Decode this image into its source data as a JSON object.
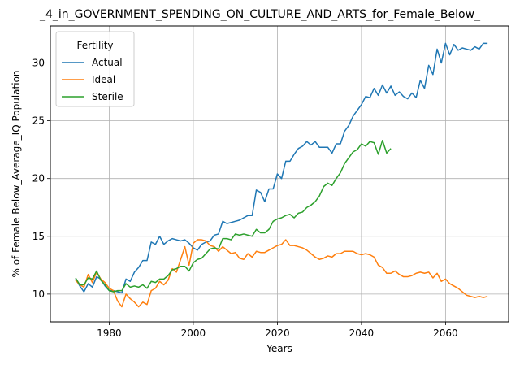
{
  "chart_data": {
    "type": "line",
    "title": "_4_in_GOVERNMENT_SPENDING_ON_CULTURE_AND_ARTS_for_Female_Below_",
    "xlabel": "Years",
    "ylabel": "% of Female Below_Average_IQ Population",
    "xlim": [
      1966,
      2075
    ],
    "ylim": [
      7.6,
      33.2
    ],
    "xticks": [
      1980,
      2000,
      2020,
      2040,
      2060
    ],
    "yticks": [
      10,
      15,
      20,
      25,
      30
    ],
    "grid": true,
    "legend": {
      "title": "Fertility",
      "placement": "top-left"
    },
    "colors": {
      "Actual": "#1f77b4",
      "Ideal": "#ff7f0e",
      "Sterile": "#2ca02c"
    },
    "series": [
      {
        "name": "Actual",
        "x": [
          1972,
          1973,
          1974,
          1975,
          1976,
          1977,
          1978,
          1979,
          1980,
          1981,
          1982,
          1983,
          1984,
          1985,
          1986,
          1987,
          1988,
          1989,
          1990,
          1991,
          1992,
          1993,
          1994,
          1995,
          1996,
          1997,
          1998,
          1999,
          2000,
          2001,
          2002,
          2003,
          2004,
          2005,
          2006,
          2007,
          2008,
          2009,
          2010,
          2011,
          2012,
          2013,
          2014,
          2015,
          2016,
          2017,
          2018,
          2019,
          2020,
          2021,
          2022,
          2023,
          2024,
          2025,
          2026,
          2027,
          2028,
          2029,
          2030,
          2031,
          2032,
          2033,
          2034,
          2035,
          2036,
          2037,
          2038,
          2039,
          2040,
          2041,
          2042,
          2043,
          2044,
          2045,
          2046,
          2047,
          2048,
          2049,
          2050,
          2051,
          2052,
          2053,
          2054,
          2055,
          2056,
          2057,
          2058,
          2059,
          2060,
          2061,
          2062,
          2063,
          2064,
          2065,
          2066,
          2067,
          2068,
          2069,
          2070
        ],
        "values": [
          11.3,
          10.7,
          10.2,
          10.9,
          10.6,
          11.5,
          11.3,
          10.7,
          10.3,
          10.3,
          10.2,
          10.1,
          11.3,
          11.1,
          11.9,
          12.3,
          12.9,
          12.9,
          14.5,
          14.3,
          15.0,
          14.3,
          14.6,
          14.8,
          14.7,
          14.6,
          14.7,
          14.4,
          14.0,
          13.8,
          14.3,
          14.5,
          14.6,
          15.1,
          15.2,
          16.3,
          16.1,
          16.2,
          16.3,
          16.4,
          16.6,
          16.8,
          16.8,
          19.0,
          18.8,
          18.0,
          19.1,
          19.1,
          20.4,
          20.0,
          21.5,
          21.5,
          22.1,
          22.6,
          22.8,
          23.2,
          22.9,
          23.2,
          22.7,
          22.7,
          22.7,
          22.2,
          23.0,
          23.0,
          24.1,
          24.6,
          25.4,
          25.9,
          26.4,
          27.1,
          27.0,
          27.8,
          27.2,
          28.1,
          27.4,
          28.0,
          27.2,
          27.5,
          27.1,
          26.9,
          27.4,
          27.0,
          28.5,
          27.8,
          29.8,
          29.0,
          31.2,
          30.0,
          31.7,
          30.7,
          31.6,
          31.1,
          31.3,
          31.2,
          31.1,
          31.4,
          31.2,
          31.7,
          31.7
        ]
      },
      {
        "name": "Ideal",
        "x": [
          1972,
          1973,
          1974,
          1975,
          1976,
          1977,
          1978,
          1979,
          1980,
          1981,
          1982,
          1983,
          1984,
          1985,
          1986,
          1987,
          1988,
          1989,
          1990,
          1991,
          1992,
          1993,
          1994,
          1995,
          1996,
          1997,
          1998,
          1999,
          2000,
          2001,
          2002,
          2003,
          2004,
          2005,
          2006,
          2007,
          2008,
          2009,
          2010,
          2011,
          2012,
          2013,
          2014,
          2015,
          2016,
          2017,
          2018,
          2019,
          2020,
          2021,
          2022,
          2023,
          2024,
          2025,
          2026,
          2027,
          2028,
          2029,
          2030,
          2031,
          2032,
          2033,
          2034,
          2035,
          2036,
          2037,
          2038,
          2039,
          2040,
          2041,
          2042,
          2043,
          2044,
          2045,
          2046,
          2047,
          2048,
          2049,
          2050,
          2051,
          2052,
          2053,
          2054,
          2055,
          2056,
          2057,
          2058,
          2059,
          2060,
          2061,
          2062,
          2063,
          2064,
          2065,
          2066,
          2067,
          2068,
          2069,
          2070
        ],
        "values": [
          11.2,
          10.8,
          10.6,
          11.7,
          11.0,
          11.9,
          11.3,
          11.0,
          10.5,
          10.3,
          9.4,
          8.9,
          10.0,
          9.6,
          9.3,
          8.9,
          9.3,
          9.1,
          10.3,
          10.5,
          11.1,
          10.8,
          11.2,
          12.2,
          11.9,
          13.0,
          14.1,
          12.5,
          14.4,
          14.7,
          14.7,
          14.6,
          14.2,
          14.1,
          13.7,
          14.1,
          13.8,
          13.5,
          13.6,
          13.1,
          13.0,
          13.5,
          13.2,
          13.7,
          13.6,
          13.6,
          13.8,
          14.0,
          14.2,
          14.3,
          14.7,
          14.2,
          14.2,
          14.1,
          14.0,
          13.8,
          13.5,
          13.2,
          13.0,
          13.1,
          13.3,
          13.2,
          13.5,
          13.5,
          13.7,
          13.7,
          13.7,
          13.5,
          13.4,
          13.5,
          13.4,
          13.2,
          12.5,
          12.3,
          11.8,
          11.8,
          12.0,
          11.7,
          11.5,
          11.5,
          11.6,
          11.8,
          11.9,
          11.8,
          11.9,
          11.4,
          11.8,
          11.1,
          11.3,
          10.9,
          10.7,
          10.5,
          10.2,
          9.9,
          9.8,
          9.7,
          9.8,
          9.7,
          9.8
        ]
      },
      {
        "name": "Sterile",
        "x": [
          1972,
          1973,
          1974,
          1975,
          1976,
          1977,
          1978,
          1979,
          1980,
          1981,
          1982,
          1983,
          1984,
          1985,
          1986,
          1987,
          1988,
          1989,
          1990,
          1991,
          1992,
          1993,
          1994,
          1995,
          1996,
          1997,
          1998,
          1999,
          2000,
          2001,
          2002,
          2003,
          2004,
          2005,
          2006,
          2007,
          2008,
          2009,
          2010,
          2011,
          2012,
          2013,
          2014,
          2015,
          2016,
          2017,
          2018,
          2019,
          2020,
          2021,
          2022,
          2023,
          2024,
          2025,
          2026,
          2027,
          2028,
          2029,
          2030,
          2031,
          2032,
          2033,
          2034,
          2035,
          2036,
          2037,
          2038,
          2039,
          2040,
          2041,
          2042,
          2043,
          2044,
          2045,
          2046,
          2047
        ],
        "values": [
          11.4,
          10.8,
          10.8,
          11.4,
          11.3,
          12.0,
          11.2,
          10.8,
          10.3,
          10.2,
          10.3,
          10.3,
          10.9,
          10.6,
          10.7,
          10.6,
          10.8,
          10.5,
          11.1,
          11.0,
          11.3,
          11.3,
          11.6,
          12.1,
          12.2,
          12.4,
          12.4,
          12.0,
          12.7,
          13.0,
          13.1,
          13.5,
          13.9,
          14.0,
          13.9,
          14.8,
          14.8,
          14.7,
          15.2,
          15.1,
          15.2,
          15.1,
          15.0,
          15.6,
          15.3,
          15.3,
          15.6,
          16.3,
          16.5,
          16.6,
          16.8,
          16.9,
          16.6,
          17.0,
          17.1,
          17.5,
          17.7,
          18.0,
          18.5,
          19.3,
          19.6,
          19.4,
          20.0,
          20.5,
          21.3,
          21.8,
          22.3,
          22.5,
          23.0,
          22.8,
          23.2,
          23.1,
          22.1,
          23.3,
          22.2,
          22.6
        ]
      }
    ]
  }
}
